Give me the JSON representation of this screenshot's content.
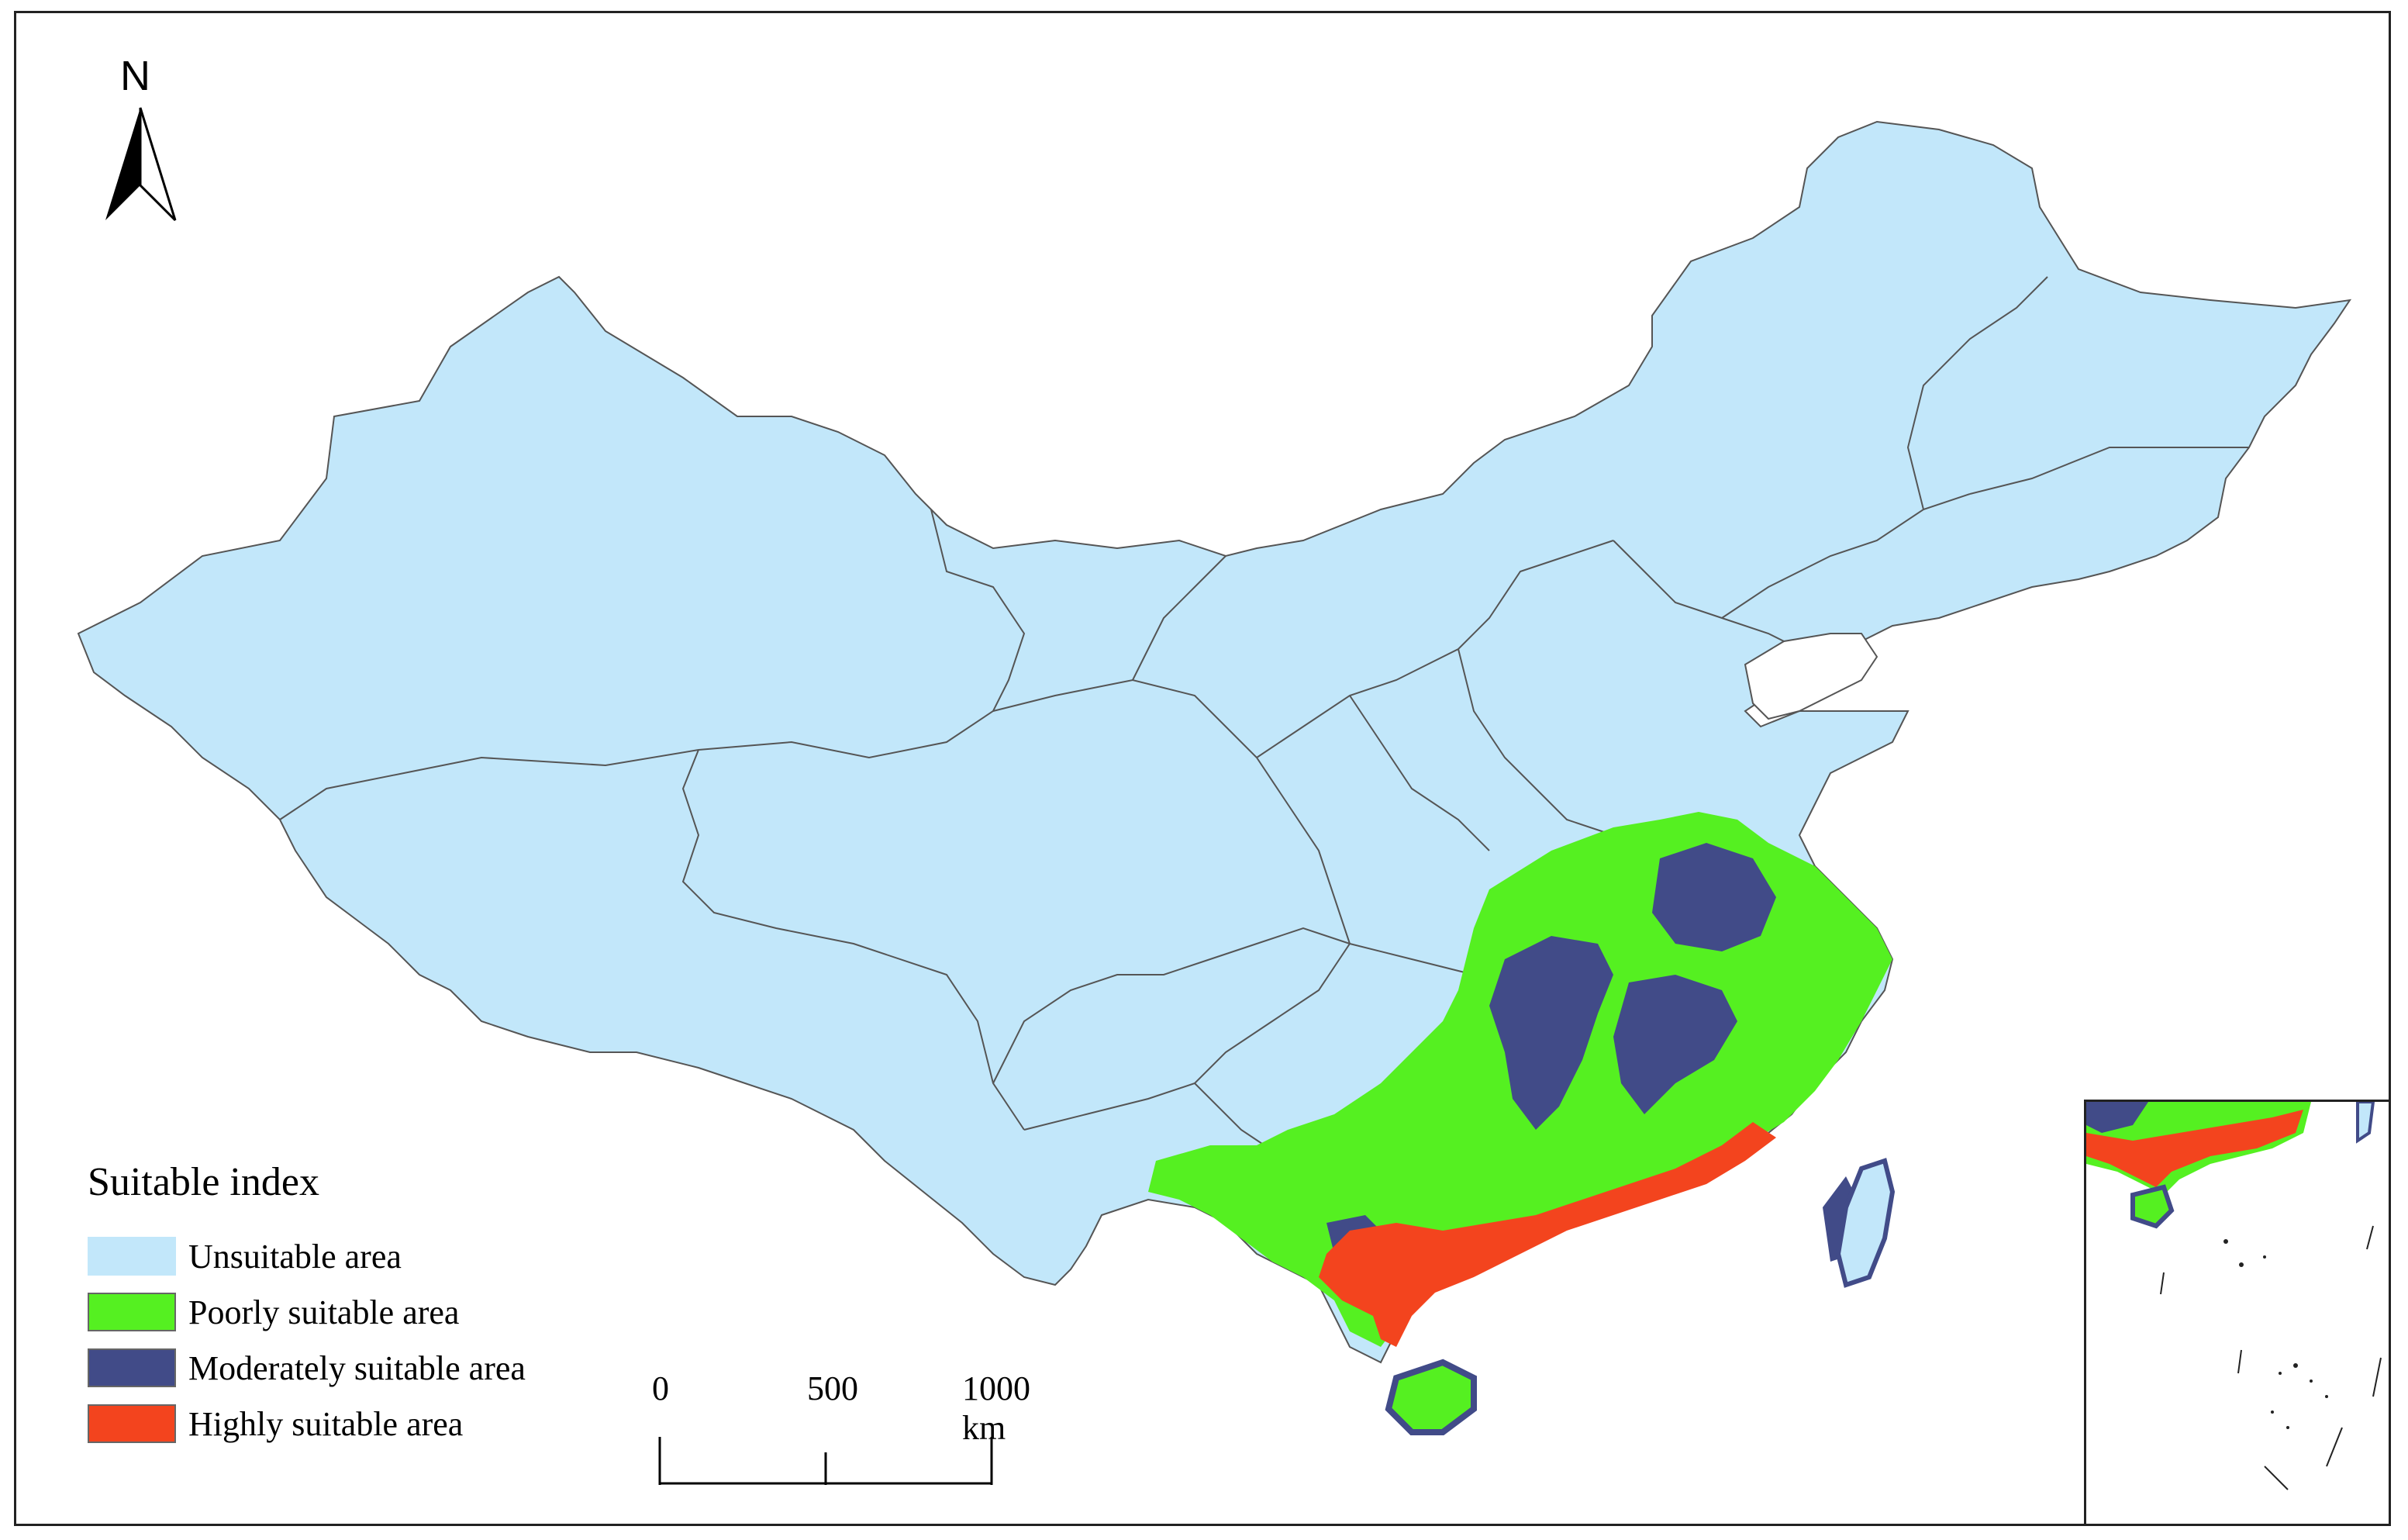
{
  "north_arrow": {
    "label": "N"
  },
  "legend": {
    "title": "Suitable index",
    "items": [
      {
        "label": "Unsuitable area",
        "color": "#c2e7fa"
      },
      {
        "label": "Poorly suitable area",
        "color": "#55f021"
      },
      {
        "label": "Moderately suitable area",
        "color": "#414b88"
      },
      {
        "label": "Highly suitable area",
        "color": "#f3441e"
      }
    ]
  },
  "scale_bar": {
    "labels": [
      "0",
      "500",
      "1000 km"
    ]
  },
  "colors": {
    "unsuitable": "#c2e7fa",
    "poor": "#55f021",
    "moderate": "#414b88",
    "high": "#f3441e",
    "border": "#555555"
  }
}
